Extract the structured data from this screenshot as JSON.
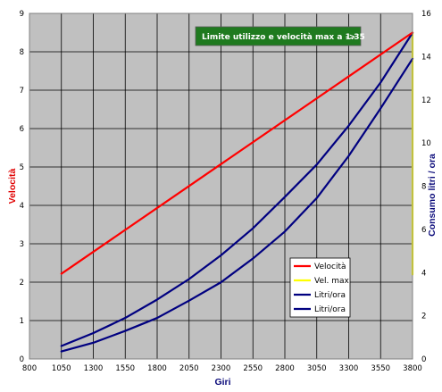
{
  "chart_data": {
    "type": "line",
    "xlabel": "Giri",
    "ylabel": "Velocità",
    "y2label": "Consumo litri / ora",
    "xlim": [
      800,
      3800
    ],
    "xticks": [
      800,
      1050,
      1300,
      1550,
      1800,
      2050,
      2300,
      2550,
      2800,
      3050,
      3300,
      3550,
      3800
    ],
    "ylim": [
      0,
      9
    ],
    "yticks": [
      0,
      1,
      2,
      3,
      4,
      5,
      6,
      7,
      8,
      9
    ],
    "y2lim": [
      0,
      16
    ],
    "y2ticks": [
      0,
      2,
      4,
      6,
      8,
      10,
      12,
      14,
      16
    ],
    "grid": true,
    "plot_background": "#c0c0c0",
    "legend_position": "bottom-right",
    "annotation": {
      "text": "Limite utilizzo e velocità max a 1.35",
      "arrow": "->",
      "color": "#1f7a1f"
    },
    "series": [
      {
        "name": "Velocità",
        "axis": "left",
        "color": "#ff0000",
        "x": [
          1050,
          3800
        ],
        "y": [
          2.22,
          8.5
        ]
      },
      {
        "name": "Vel. max",
        "axis": "left",
        "color": "#ffff00",
        "x": [
          3800,
          3800
        ],
        "y": [
          2.2,
          8.5
        ]
      },
      {
        "name": "Litri/ora",
        "axis": "right",
        "color": "#000080",
        "x": [
          1050,
          1300,
          1550,
          1800,
          2050,
          2300,
          2550,
          2800,
          3050,
          3300,
          3550,
          3800
        ],
        "y": [
          0.6,
          1.2,
          1.9,
          2.75,
          3.7,
          4.8,
          6.05,
          7.5,
          9.0,
          10.8,
          12.8,
          15.1
        ]
      },
      {
        "name": "Litri/ora",
        "axis": "right",
        "color": "#000080",
        "x": [
          1050,
          1300,
          1550,
          1800,
          2050,
          2300,
          2550,
          2800,
          3050,
          3300,
          3550,
          3800
        ],
        "y": [
          0.35,
          0.75,
          1.3,
          1.9,
          2.7,
          3.55,
          4.65,
          5.9,
          7.45,
          9.4,
          11.6,
          13.9
        ]
      }
    ]
  }
}
